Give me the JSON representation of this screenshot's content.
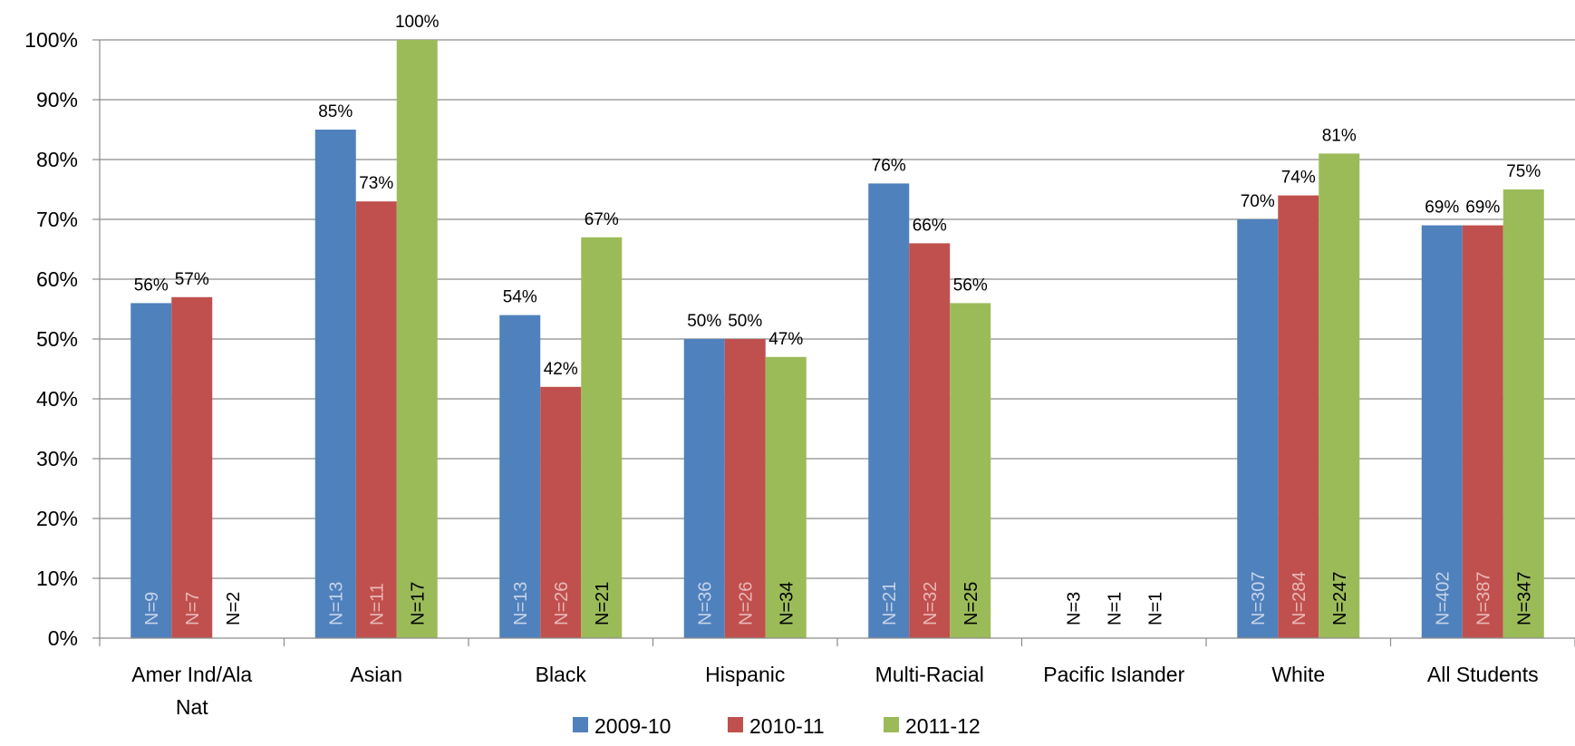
{
  "chart_data": {
    "type": "bar",
    "title": "",
    "xlabel": "",
    "ylabel": "",
    "ylim": [
      0,
      100
    ],
    "yticks": [
      0,
      10,
      20,
      30,
      40,
      50,
      60,
      70,
      80,
      90,
      100
    ],
    "ytick_labels": [
      "0%",
      "10%",
      "20%",
      "30%",
      "40%",
      "50%",
      "60%",
      "70%",
      "80%",
      "90%",
      "100%"
    ],
    "grid": true,
    "legend_position": "bottom",
    "categories": [
      [
        "Amer Ind/Ala",
        "Nat"
      ],
      [
        "Asian"
      ],
      [
        "Black"
      ],
      [
        "Hispanic"
      ],
      [
        "Multi-Racial"
      ],
      [
        "Pacific Islander"
      ],
      [
        "White"
      ],
      [
        "All Students"
      ]
    ],
    "series": [
      {
        "name": "2009-10",
        "color": "#4F81BD",
        "n_label_color": "#C6D3E8",
        "values": [
          56,
          85,
          54,
          50,
          76,
          null,
          70,
          69
        ],
        "labels": [
          "56%",
          "85%",
          "54%",
          "50%",
          "76%",
          "",
          "70%",
          "69%"
        ],
        "n": [
          "N=9",
          "N=13",
          "N=13",
          "N=36",
          "N=21",
          "N=3",
          "N=307",
          "N=402"
        ]
      },
      {
        "name": "2010-11",
        "color": "#C0504D",
        "n_label_color": "#E7B9B8",
        "values": [
          57,
          73,
          42,
          50,
          66,
          null,
          74,
          69
        ],
        "labels": [
          "57%",
          "73%",
          "42%",
          "50%",
          "66%",
          "",
          "74%",
          "69%"
        ],
        "n": [
          "N=7",
          "N=11",
          "N=26",
          "N=26",
          "N=32",
          "N=1",
          "N=284",
          "N=387"
        ]
      },
      {
        "name": "2011-12",
        "color": "#9BBB59",
        "n_label_color": "#000000",
        "values": [
          null,
          100,
          67,
          47,
          56,
          null,
          81,
          75
        ],
        "labels": [
          "",
          "100%",
          "67%",
          "47%",
          "56%",
          "",
          "81%",
          "75%"
        ],
        "n": [
          "N=2",
          "N=17",
          "N=21",
          "N=34",
          "N=25",
          "N=1",
          "N=247",
          "N=347"
        ]
      }
    ]
  }
}
